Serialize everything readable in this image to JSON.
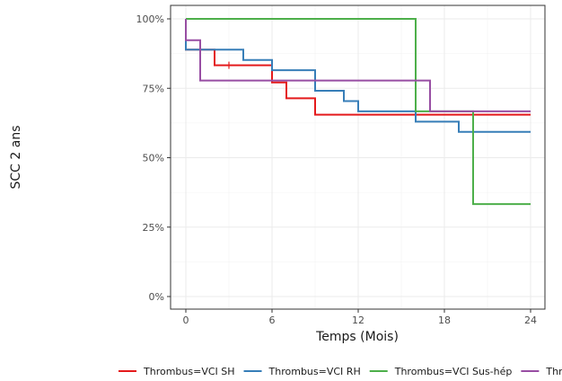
{
  "chart_data": {
    "type": "line",
    "xlabel": "Temps (Mois)",
    "ylabel": "SCC 2 ans",
    "xlim": [
      -1,
      25
    ],
    "ylim": [
      0,
      1
    ],
    "x_ticks": [
      0,
      6,
      12,
      18,
      24
    ],
    "x_tick_labels": [
      "0",
      "6",
      "12",
      "18",
      "24"
    ],
    "y_ticks": [
      0,
      0.25,
      0.5,
      0.75,
      1.0
    ],
    "y_tick_labels": [
      "0%",
      "25%",
      "50%",
      "75%",
      "100%"
    ],
    "grid": true,
    "legend_position": "bottom",
    "series": [
      {
        "name": "Thrombus=VCI SH",
        "color": "#e41a1c",
        "steps": [
          [
            0,
            0.889
          ],
          [
            2,
            0.833
          ],
          [
            6,
            0.771
          ],
          [
            7,
            0.714
          ],
          [
            9,
            0.655
          ],
          [
            24,
            0.655
          ]
        ],
        "censor_x": [
          3
        ]
      },
      {
        "name": "Thrombus=VCI RH",
        "color": "#377eb8",
        "steps": [
          [
            0,
            0.889
          ],
          [
            4,
            0.852
          ],
          [
            6,
            0.815
          ],
          [
            9,
            0.741
          ],
          [
            11,
            0.704
          ],
          [
            12,
            0.667
          ],
          [
            16,
            0.63
          ],
          [
            19,
            0.593
          ],
          [
            24,
            0.593
          ]
        ],
        "censor_x": []
      },
      {
        "name": "Thrombus=VCI Sus-hép",
        "color": "#4daf4a",
        "steps": [
          [
            0,
            1.0
          ],
          [
            16,
            0.667
          ],
          [
            20,
            0.333
          ],
          [
            24,
            0.333
          ]
        ],
        "censor_x": []
      },
      {
        "name": "Thr",
        "color": "#984ea3",
        "steps": [
          [
            0,
            0.923
          ],
          [
            1,
            0.778
          ],
          [
            17,
            0.667
          ],
          [
            24,
            0.667
          ]
        ],
        "censor_x": []
      }
    ]
  }
}
